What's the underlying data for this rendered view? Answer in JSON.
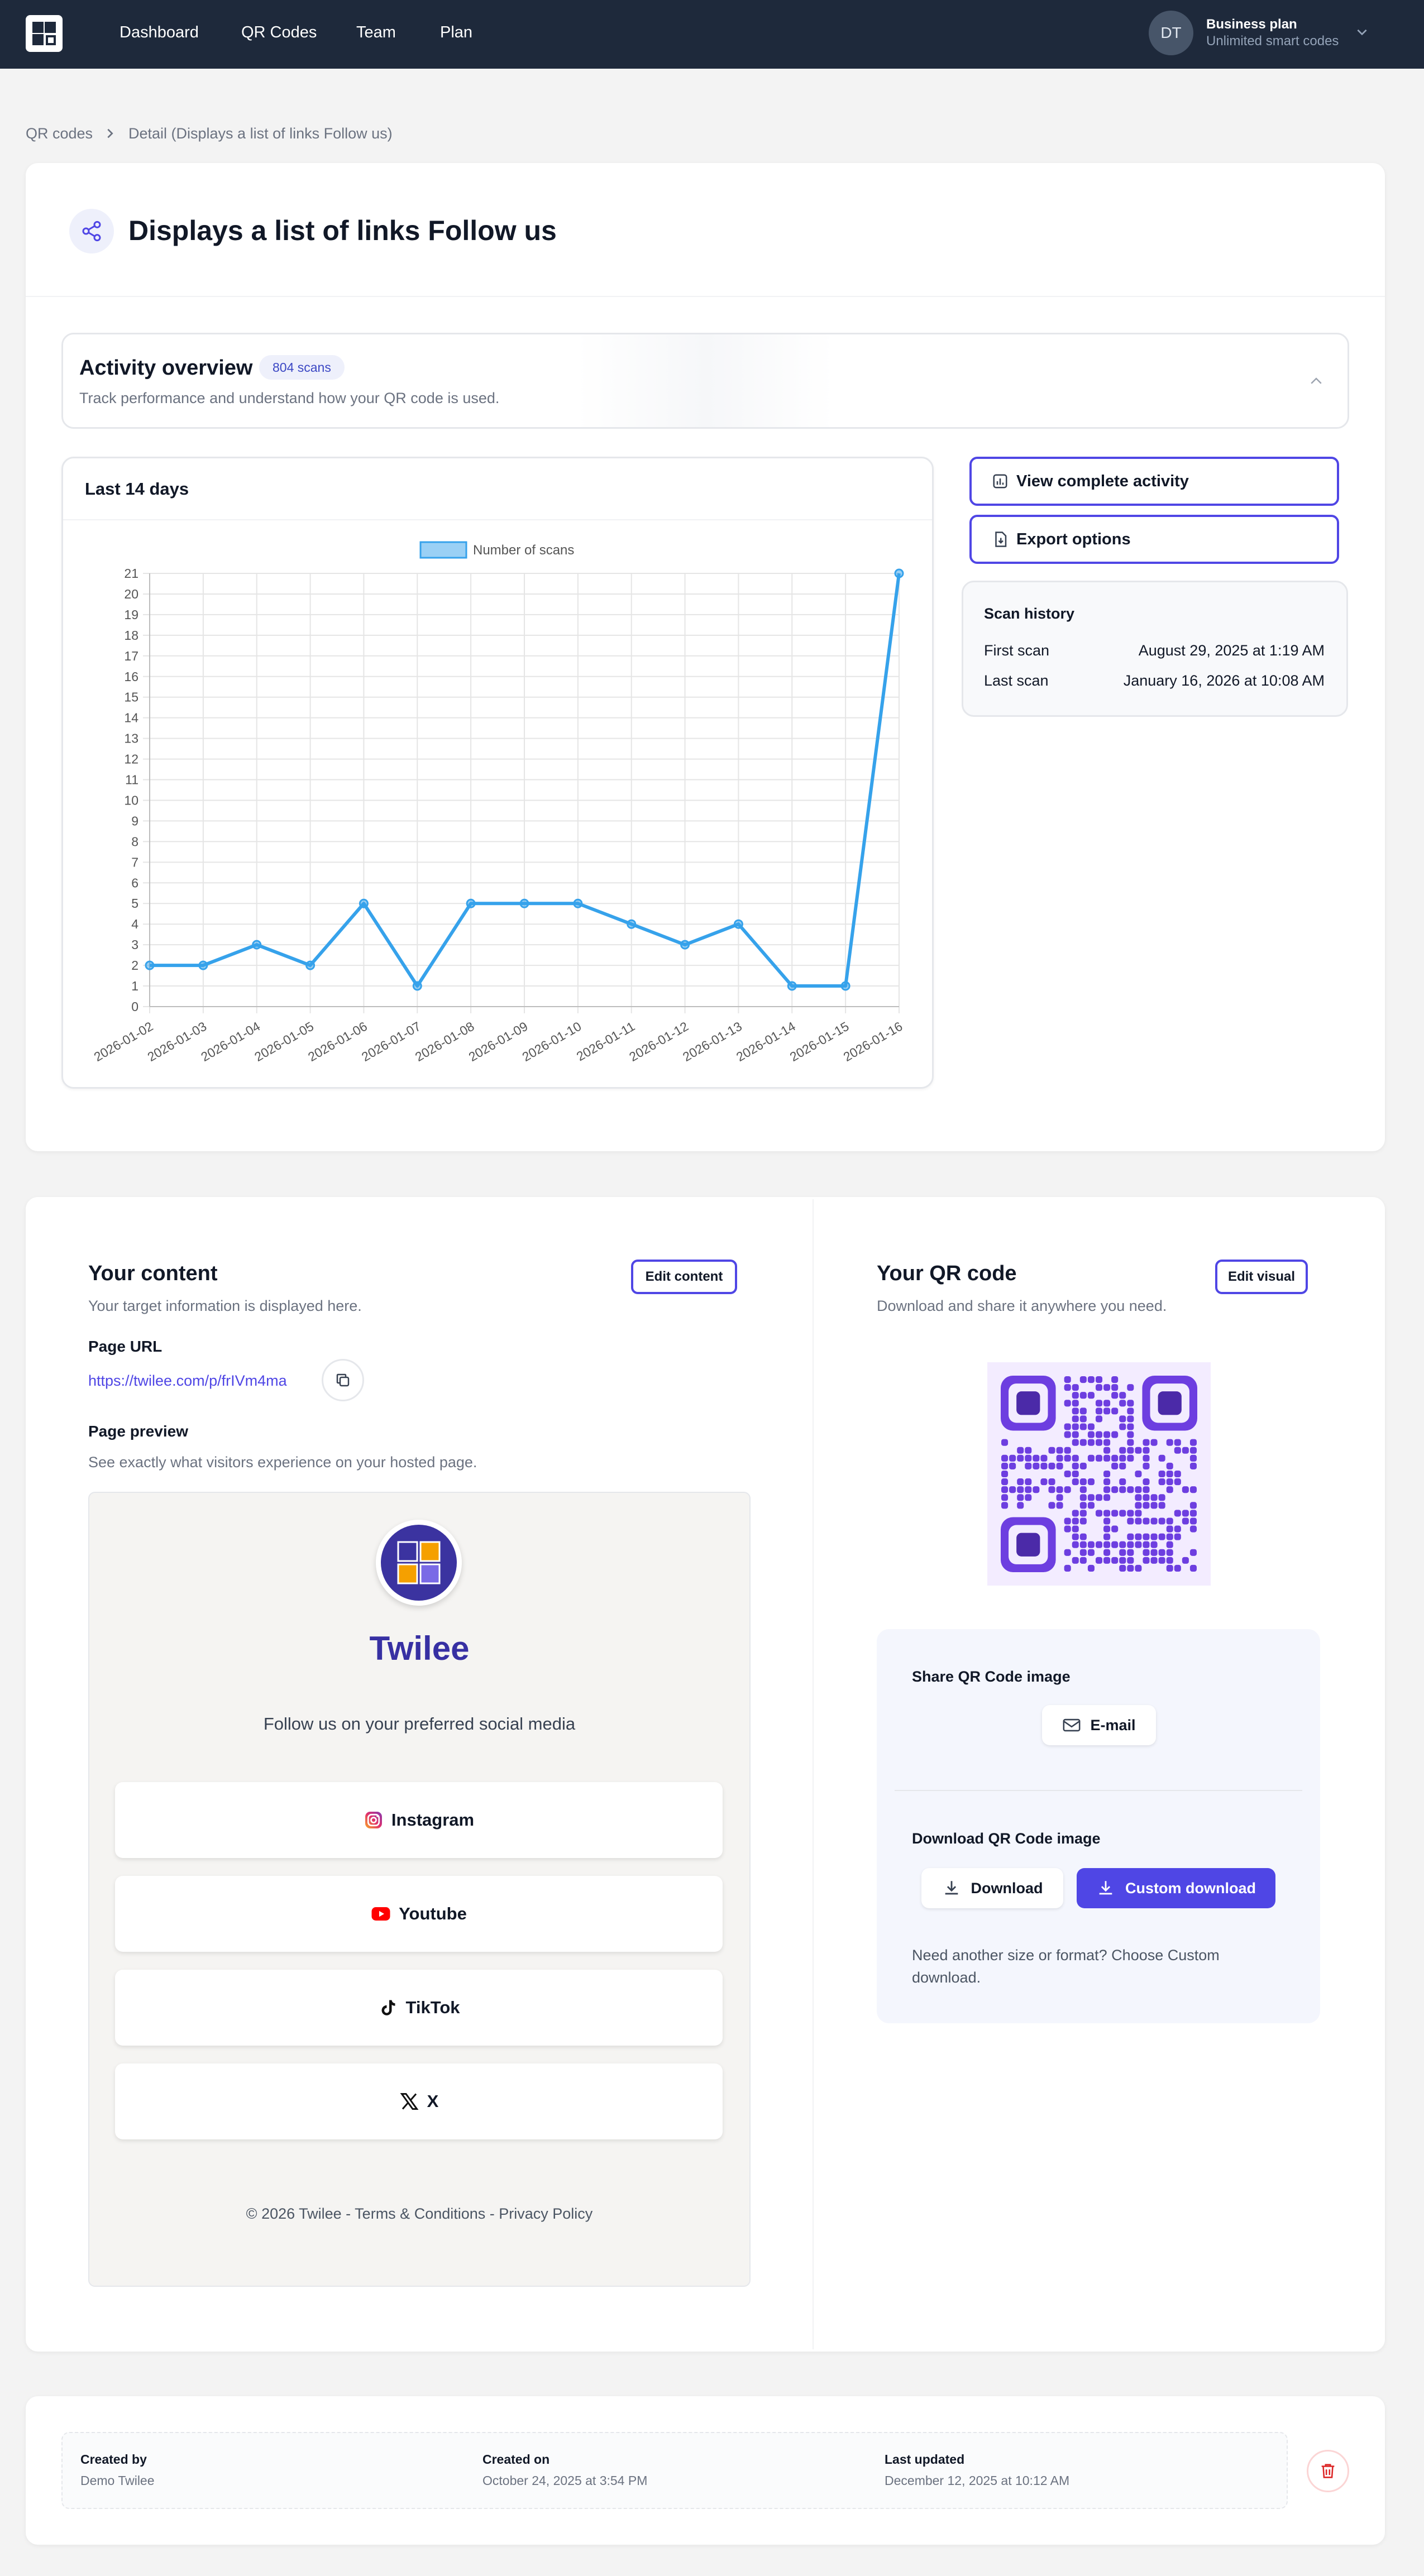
{
  "nav": {
    "items": [
      "Dashboard",
      "QR Codes",
      "Team",
      "Plan"
    ],
    "user_initials": "DT",
    "plan_title": "Business plan",
    "plan_subtitle": "Unlimited smart codes"
  },
  "breadcrumb": {
    "root": "QR codes",
    "current": "Detail (Displays a list of links Follow us)"
  },
  "page": {
    "title": "Displays a list of links Follow us"
  },
  "activity": {
    "title": "Activity overview",
    "badge": "804 scans",
    "subtitle": "Track performance and understand how your QR code is used.",
    "chart_title": "Last 14 days",
    "view_button": "View complete activity",
    "export_button": "Export options",
    "scan_history": {
      "title": "Scan history",
      "first_label": "First scan",
      "first_value": "August 29, 2025 at 1:19 AM",
      "last_label": "Last scan",
      "last_value": "January 16, 2026 at 10:08 AM"
    }
  },
  "chart_data": {
    "type": "line",
    "categories": [
      "2026-01-02",
      "2026-01-03",
      "2026-01-04",
      "2026-01-05",
      "2026-01-06",
      "2026-01-07",
      "2026-01-08",
      "2026-01-09",
      "2026-01-10",
      "2026-01-11",
      "2026-01-12",
      "2026-01-13",
      "2026-01-14",
      "2026-01-15",
      "2026-01-16"
    ],
    "series": [
      {
        "name": "Number of scans",
        "values": [
          2,
          2,
          3,
          2,
          5,
          1,
          5,
          5,
          5,
          4,
          3,
          4,
          1,
          1,
          21
        ],
        "color": "#36a2eb"
      }
    ],
    "ylim": [
      0,
      21
    ],
    "yticks": [
      0,
      1,
      2,
      3,
      4,
      5,
      6,
      7,
      8,
      9,
      10,
      11,
      12,
      13,
      14,
      15,
      16,
      17,
      18,
      19,
      20,
      21
    ],
    "grid": true,
    "legend": "top-center"
  },
  "content": {
    "title": "Your content",
    "subtitle": "Your target information is displayed here.",
    "edit_button": "Edit content",
    "url_label": "Page URL",
    "url": "https://twilee.com/p/frIVm4ma",
    "preview_label": "Page preview",
    "preview_subtitle": "See exactly what visitors experience on your hosted page.",
    "preview": {
      "name": "Twilee",
      "tagline": "Follow us on your preferred social media",
      "links": [
        {
          "label": "Instagram",
          "icon": "instagram-icon"
        },
        {
          "label": "Youtube",
          "icon": "youtube-icon"
        },
        {
          "label": "TikTok",
          "icon": "tiktok-icon"
        },
        {
          "label": "X",
          "icon": "x-icon"
        }
      ],
      "footer": "© 2026 Twilee - Terms & Conditions - Privacy Policy"
    }
  },
  "qr": {
    "title": "Your QR code",
    "subtitle": "Download and share it anywhere you need.",
    "edit_button": "Edit visual",
    "share_label": "Share QR Code image",
    "email_button": "E-mail",
    "download_label": "Download QR Code image",
    "download_button": "Download",
    "custom_download_button": "Custom download",
    "note": "Need another size or format? Choose Custom download.",
    "accent": "#6d3ee0"
  },
  "meta": {
    "created_by_label": "Created by",
    "created_by": "Demo Twilee",
    "created_on_label": "Created on",
    "created_on": "October 24, 2025 at 3:54 PM",
    "updated_label": "Last updated",
    "updated": "December 12, 2025 at 10:12 AM"
  }
}
